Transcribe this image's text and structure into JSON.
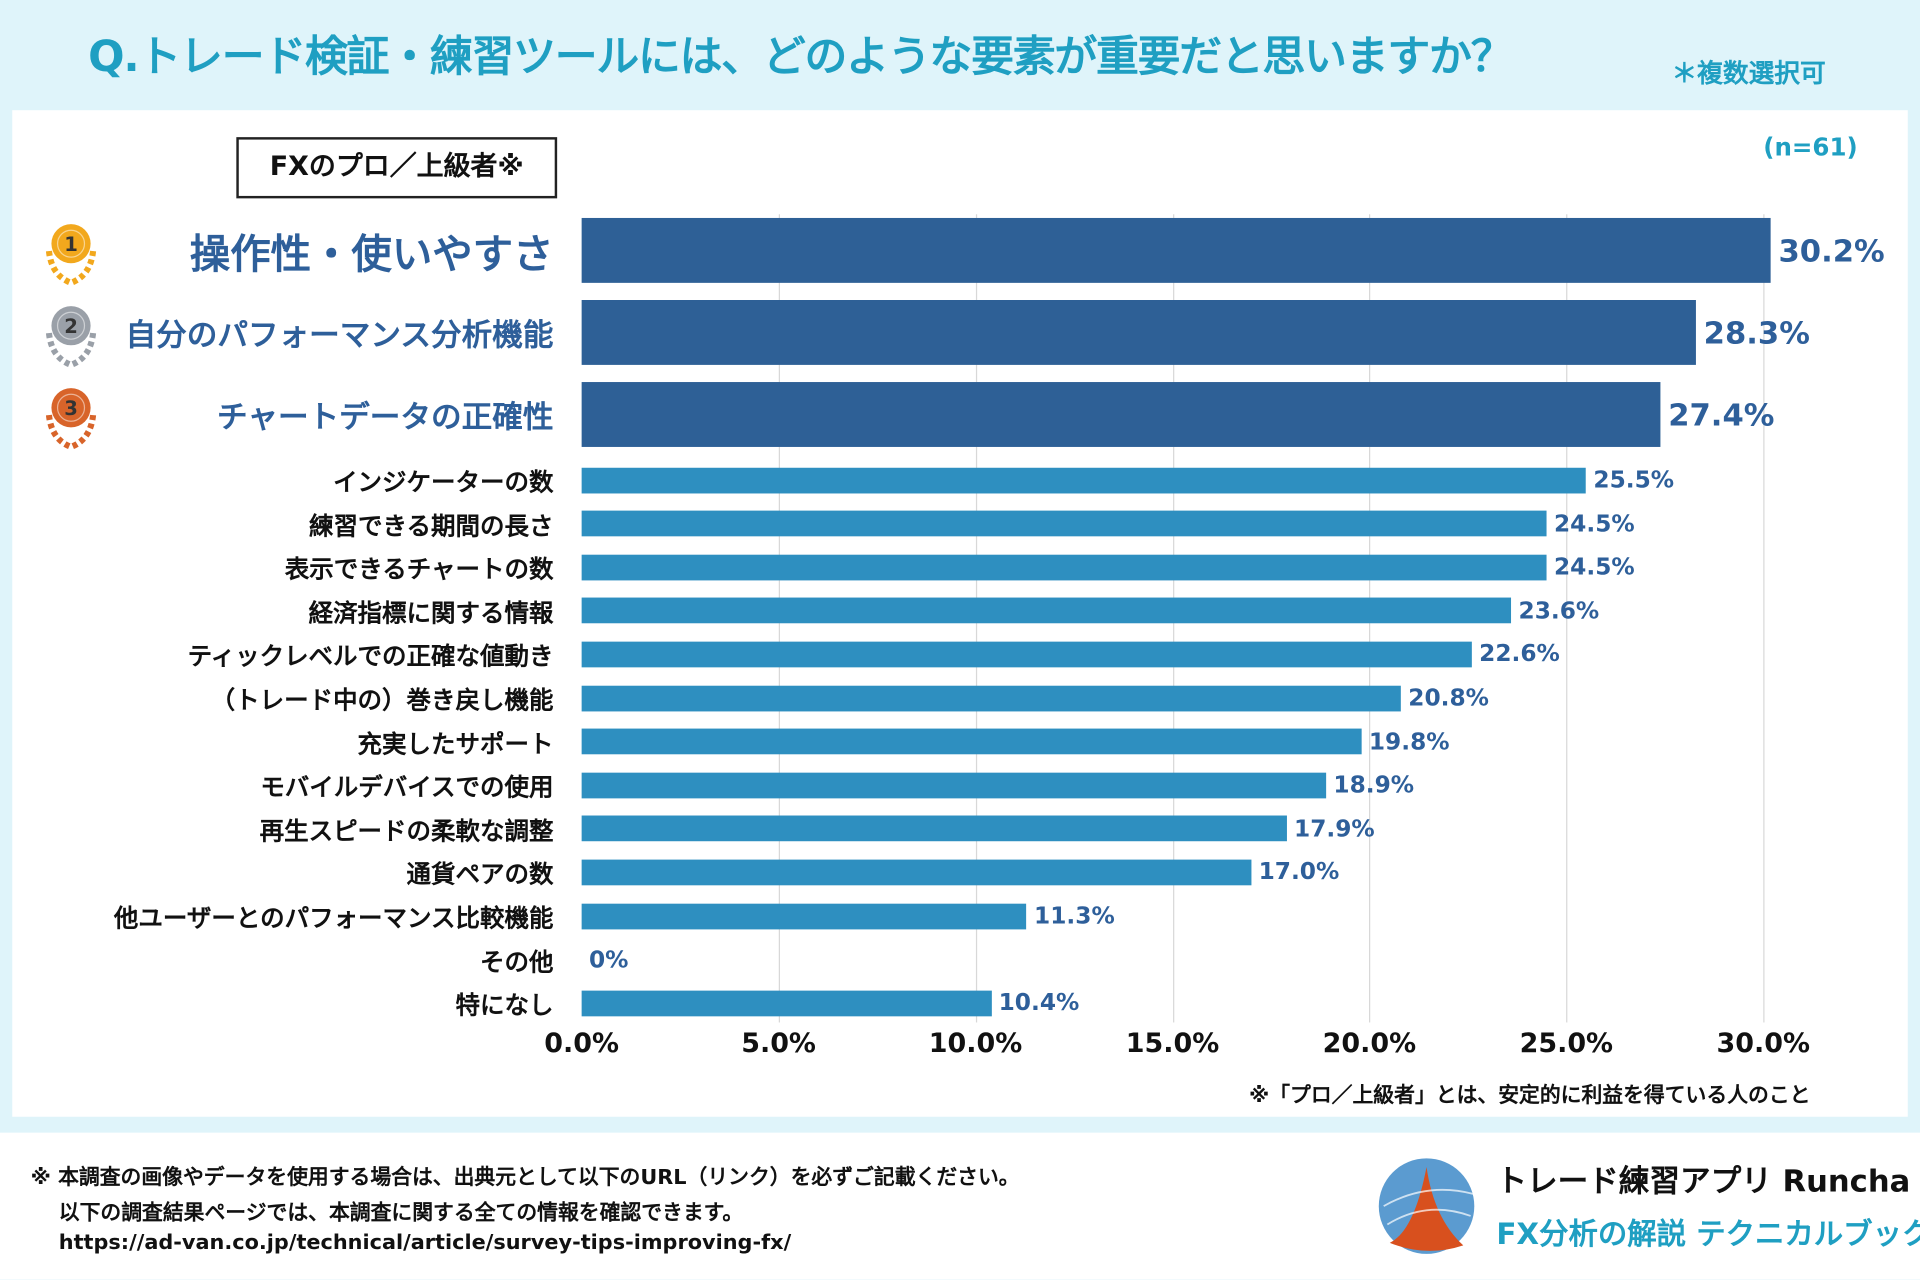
{
  "header": {
    "title": "Q.トレード検証・練習ツールには、どのような要素が重要だと思いますか？",
    "note": "＊複数選択可"
  },
  "group_label": "FXのプロ／上級者※",
  "sample": "(n=61)",
  "colors": {
    "top3": "#2e6096",
    "others": "#2e8fc0",
    "accent": "#1f9fc2",
    "gold": "#f2a81d",
    "silver": "#9aa0a8",
    "bronze": "#d8642a"
  },
  "medals": [
    "1",
    "2",
    "3"
  ],
  "chart_data": {
    "type": "bar",
    "orientation": "horizontal",
    "categories": [
      "操作性・使いやすさ",
      "自分のパフォーマンス分析機能",
      "チャートデータの正確性",
      "インジケーターの数",
      "練習できる期間の長さ",
      "表示できるチャートの数",
      "経済指標に関する情報",
      "ティックレベルでの正確な値動き",
      "（トレード中の）巻き戻し機能",
      "充実したサポート",
      "モバイルデバイスでの使用",
      "再生スピードの柔軟な調整",
      "通貨ペアの数",
      "他ユーザーとのパフォーマンス比較機能",
      "その他",
      "特になし"
    ],
    "values": [
      30.2,
      28.3,
      27.4,
      25.5,
      24.5,
      24.5,
      23.6,
      22.6,
      20.8,
      19.8,
      18.9,
      17.9,
      17.0,
      11.3,
      0,
      10.4
    ],
    "value_labels": [
      "30.2%",
      "28.3%",
      "27.4%",
      "25.5%",
      "24.5%",
      "24.5%",
      "23.6%",
      "22.6%",
      "20.8%",
      "19.8%",
      "18.9%",
      "17.9%",
      "17.0%",
      "11.3%",
      "0%",
      "10.4%"
    ],
    "xlim": [
      0,
      30
    ],
    "x_ticks": [
      "0.0%",
      "5.0%",
      "10.0%",
      "15.0%",
      "20.0%",
      "25.0%",
      "30.0%"
    ],
    "grid": true
  },
  "footnote": "※「プロ／上級者」とは、安定的に利益を得ている人のこと",
  "footer": {
    "line1": "※ 本調査の画像やデータを使用する場合は、出典元として以下のURL（リンク）を必ずご記載ください。",
    "line2": "以下の調査結果ページでは、本調査に関する全ての情報を確認できます。",
    "url": "https://ad-van.co.jp/technical/article/survey-tips-improving-fx/",
    "brand1": "トレード練習アプリ  Runcha",
    "brand2": "FX分析の解説  テクニカルブック"
  }
}
